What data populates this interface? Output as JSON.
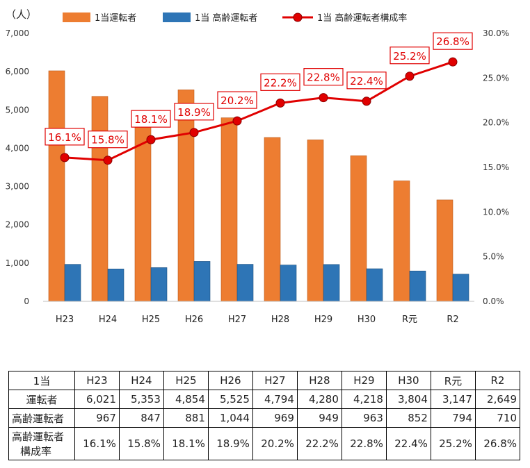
{
  "chart_data": {
    "type": "bar+line",
    "unit_label": "（人）",
    "categories": [
      "H23",
      "H24",
      "H25",
      "H26",
      "H27",
      "H28",
      "H29",
      "H30",
      "R元",
      "R2"
    ],
    "series": [
      {
        "name": "1当運転者",
        "type": "bar",
        "color": "#ED7D31",
        "values": [
          6021,
          5353,
          4854,
          5525,
          4794,
          4280,
          4218,
          3804,
          3147,
          2649
        ]
      },
      {
        "name": "1当 高齢運転者",
        "type": "bar",
        "color": "#2E75B6",
        "values": [
          967,
          847,
          881,
          1044,
          969,
          949,
          963,
          852,
          794,
          710
        ]
      },
      {
        "name": "1当 高齢運転者構成率",
        "type": "line",
        "axis": "right",
        "color": "#E00000",
        "values": [
          16.1,
          15.8,
          18.1,
          18.9,
          20.2,
          22.2,
          22.8,
          22.4,
          25.2,
          26.8
        ],
        "labels": [
          "16.1%",
          "15.8%",
          "18.1%",
          "18.9%",
          "20.2%",
          "22.2%",
          "22.8%",
          "22.4%",
          "25.2%",
          "26.8%"
        ]
      }
    ],
    "y_left": {
      "min": 0,
      "max": 7000,
      "ticks": [
        "0",
        "1,000",
        "2,000",
        "3,000",
        "4,000",
        "5,000",
        "6,000",
        "7,000"
      ]
    },
    "y_right": {
      "min": 0,
      "max": 30,
      "ticks": [
        "0.0%",
        "5.0%",
        "10.0%",
        "15.0%",
        "20.0%",
        "25.0%",
        "30.0%"
      ]
    },
    "grid": false,
    "legend": "top"
  },
  "table": {
    "header": [
      "1当",
      "H23",
      "H24",
      "H25",
      "H26",
      "H27",
      "H28",
      "H29",
      "H30",
      "R元",
      "R2"
    ],
    "rows": [
      {
        "label": "運転者",
        "values": [
          "6,021",
          "5,353",
          "4,854",
          "5,525",
          "4,794",
          "4,280",
          "4,218",
          "3,804",
          "3,147",
          "2,649"
        ]
      },
      {
        "label": "高齢運転者",
        "values": [
          "967",
          "847",
          "881",
          "1,044",
          "969",
          "949",
          "963",
          "852",
          "794",
          "710"
        ]
      },
      {
        "label": "高齢運転者",
        "label2": "構成率",
        "values": [
          "16.1%",
          "15.8%",
          "18.1%",
          "18.9%",
          "20.2%",
          "22.2%",
          "22.8%",
          "22.4%",
          "25.2%",
          "26.8%"
        ]
      }
    ]
  }
}
